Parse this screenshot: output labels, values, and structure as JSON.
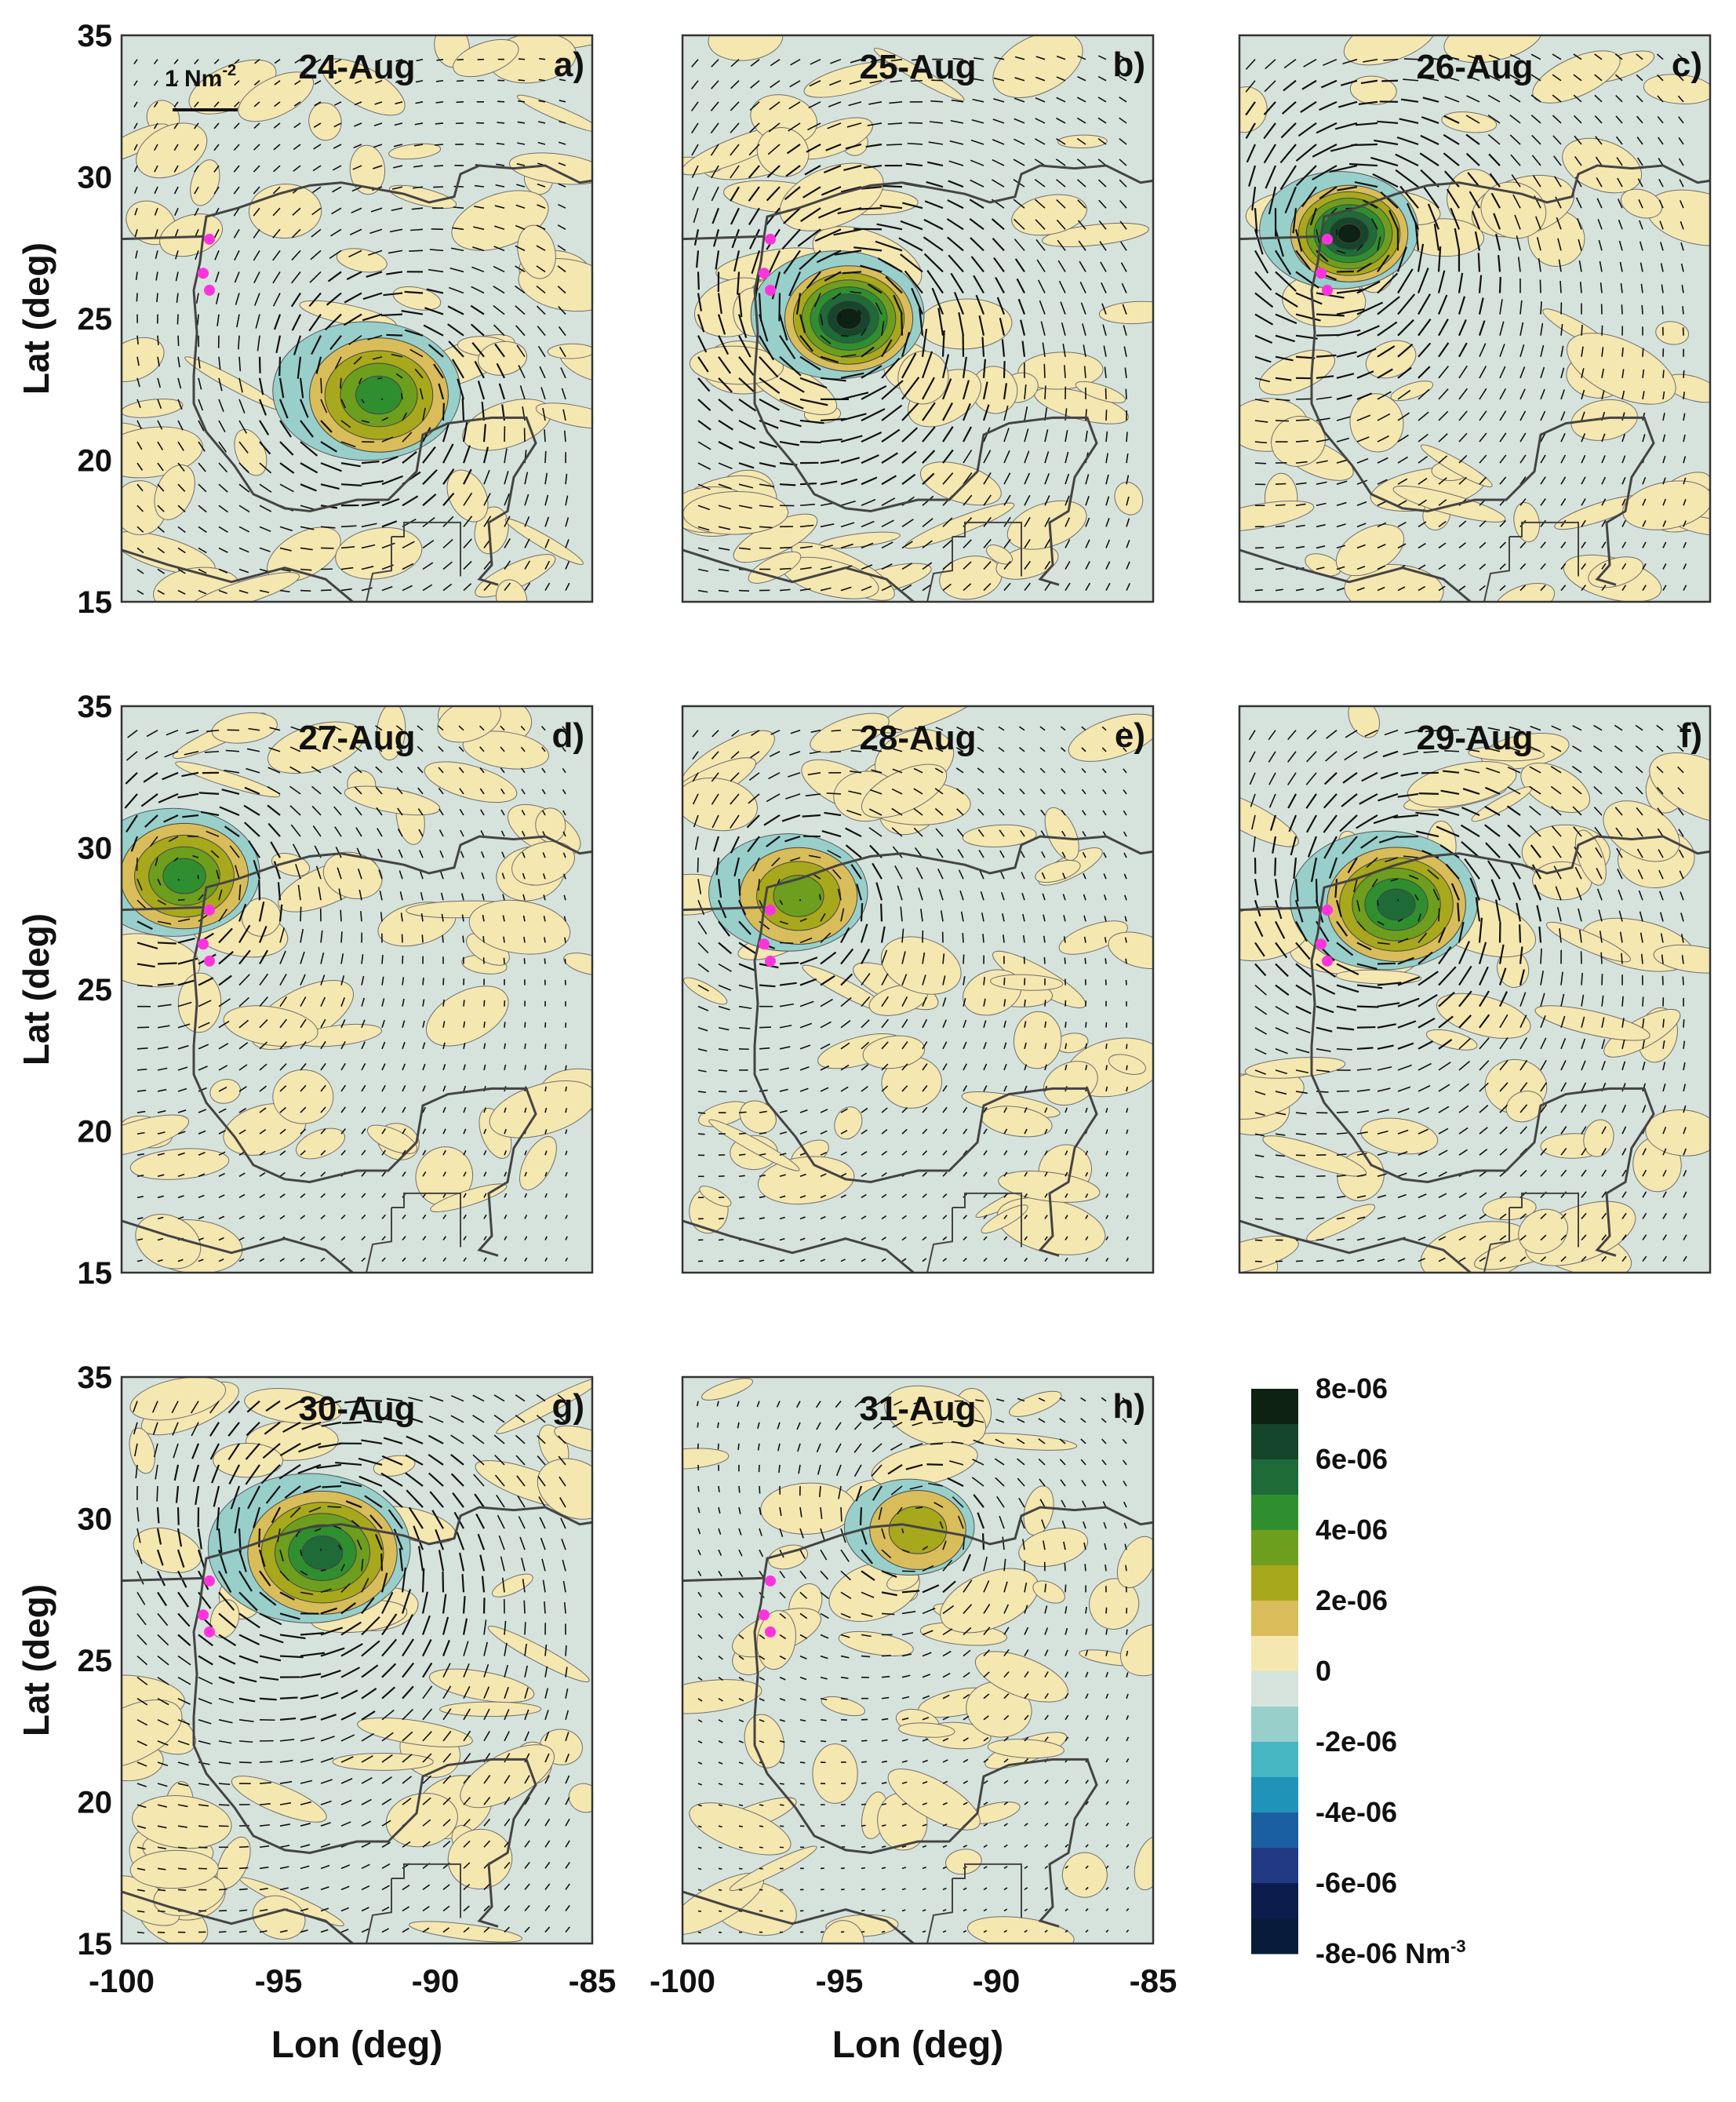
{
  "chart_data": {
    "type": "filled-contour-map",
    "figure_description_note": "Eight map panels of the Gulf of Mexico, wind stress curl (shading) with wind stress vectors",
    "axes": {
      "xlabel": "Lon (deg)",
      "ylabel": "Lat (deg)",
      "xlim": [
        -100,
        -85
      ],
      "ylim": [
        15,
        35
      ],
      "xticks": [
        -100,
        -95,
        -90,
        -85
      ],
      "yticks": [
        15,
        20,
        25,
        30,
        35
      ]
    },
    "vector_scale_label": "1 Nm",
    "vector_scale_exponent": "-2",
    "panels": [
      {
        "date": "24-Aug",
        "letter": "a)",
        "center_lon": -91.8,
        "center_lat": 22.3,
        "intensity": 0.55,
        "radius": 2.6
      },
      {
        "date": "25-Aug",
        "letter": "b)",
        "center_lon": -94.7,
        "center_lat": 25.0,
        "intensity": 1.0,
        "radius": 2.4
      },
      {
        "date": "26-Aug",
        "letter": "c)",
        "center_lon": -96.5,
        "center_lat": 28.0,
        "intensity": 1.0,
        "radius": 2.2
      },
      {
        "date": "27-Aug",
        "letter": "d)",
        "center_lon": -98.0,
        "center_lat": 29.0,
        "intensity": 0.5,
        "radius": 2.4
      },
      {
        "date": "28-Aug",
        "letter": "e)",
        "center_lon": -96.3,
        "center_lat": 28.3,
        "intensity": 0.45,
        "radius": 2.2
      },
      {
        "date": "29-Aug",
        "letter": "f)",
        "center_lon": -95.0,
        "center_lat": 28.0,
        "intensity": 0.7,
        "radius": 2.6
      },
      {
        "date": "30-Aug",
        "letter": "g)",
        "center_lon": -93.6,
        "center_lat": 28.8,
        "intensity": 0.75,
        "radius": 2.8
      },
      {
        "date": "31-Aug",
        "letter": "h)",
        "center_lon": -92.5,
        "center_lat": 29.6,
        "intensity": 0.35,
        "radius": 1.8
      }
    ],
    "station_points": [
      {
        "lon": -97.2,
        "lat": 27.8
      },
      {
        "lon": -97.4,
        "lat": 26.6
      },
      {
        "lon": -97.2,
        "lat": 26.0
      }
    ],
    "colorbar": {
      "labels": [
        "8e-06",
        "6e-06",
        "4e-06",
        "2e-06",
        "0",
        "-2e-06",
        "-4e-06",
        "-6e-06",
        "-8e-06 Nm"
      ],
      "units_exponent": "-3",
      "colors": [
        "#0e2213",
        "#15452a",
        "#1e6b38",
        "#2f8f2f",
        "#6e9e1e",
        "#a8a81c",
        "#d8bd5a",
        "#f5e7b0",
        "#d6e3dc",
        "#98cfcb",
        "#45b6c2",
        "#1f93b8",
        "#1a5fa2",
        "#223a83",
        "#0c1d4d",
        "#081b3a"
      ]
    },
    "zero_colors": {
      "positive_light": "#f5e7b0",
      "negative_light": "#d6e3dc"
    }
  }
}
